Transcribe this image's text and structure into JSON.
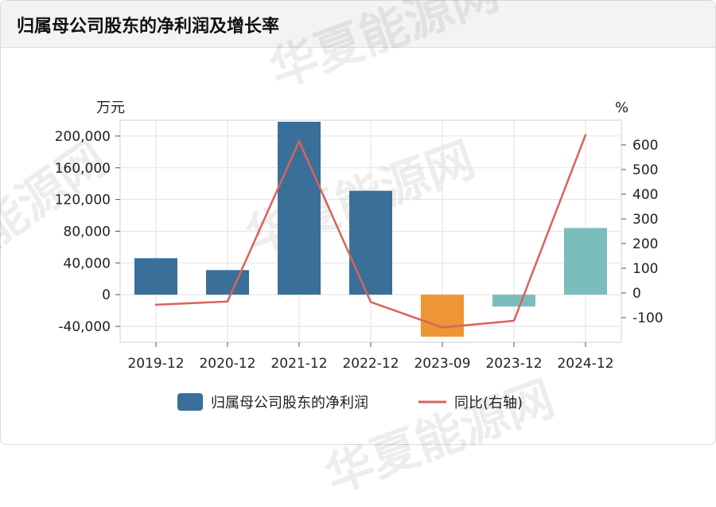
{
  "header": {
    "title": "归属母公司股东的净利润及增长率"
  },
  "watermark_text": "华夏能源网",
  "colors": {
    "bar_positive": "#3a6f99",
    "bar_q3": "#ee9535",
    "bar_teal": "#7bbdbd",
    "line": "#d9625a",
    "grid": "#e2e2e2",
    "axis": "#555555"
  },
  "chart_data": {
    "type": "bar",
    "categories": [
      "2019-12",
      "2020-12",
      "2021-12",
      "2022-12",
      "2023-09",
      "2023-12",
      "2024-12"
    ],
    "series": [
      {
        "name": "归属母公司股东的净利润",
        "type": "bar",
        "axis": "left",
        "values": [
          46000,
          31000,
          218000,
          131000,
          -53000,
          -15000,
          84000
        ],
        "colors": [
          "#3a6f99",
          "#3a6f99",
          "#3a6f99",
          "#3a6f99",
          "#ee9535",
          "#7bbdbd",
          "#7bbdbd"
        ]
      },
      {
        "name": "同比(右轴)",
        "type": "line",
        "axis": "right",
        "values": [
          -48,
          -35,
          615,
          -37,
          -140,
          -113,
          640
        ]
      }
    ],
    "yleft": {
      "unit": "万元",
      "range": [
        -60000,
        220000
      ],
      "ticks": [
        -40000,
        0,
        40000,
        80000,
        120000,
        160000,
        200000
      ],
      "tick_labels": [
        "-40,000",
        "0",
        "40,000",
        "80,000",
        "120,000",
        "160,000",
        "200,000"
      ]
    },
    "yright": {
      "unit": "%",
      "range": [
        -200,
        700
      ],
      "ticks": [
        -100,
        0,
        100,
        200,
        300,
        400,
        500,
        600
      ],
      "tick_labels": [
        "-100",
        "0",
        "100",
        "200",
        "300",
        "400",
        "500",
        "600"
      ]
    },
    "grid": true,
    "legend_position": "bottom"
  }
}
